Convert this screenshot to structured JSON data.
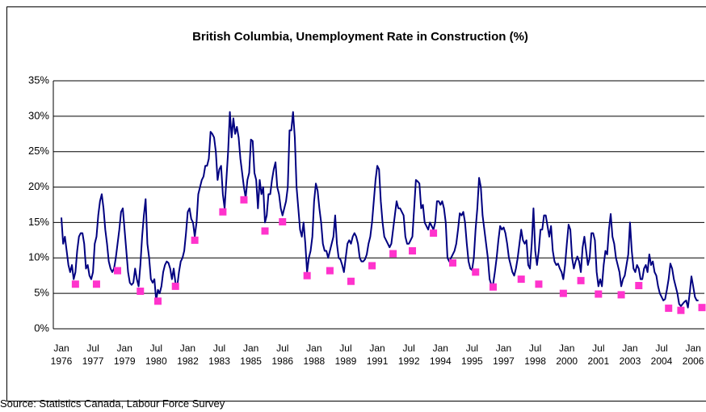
{
  "chart_data": {
    "type": "line",
    "title": "British Columbia, Unemployment Rate in Construction (%)",
    "source": "Source:  Statistics Canada, Labour Force Survey",
    "categories": [
      "Jan 1976",
      null,
      null,
      null,
      null,
      null,
      null,
      null,
      null,
      null,
      null,
      null,
      null,
      null,
      null,
      null,
      null,
      null,
      "Jul 1977",
      null,
      null,
      null,
      null,
      null,
      null,
      null,
      null,
      null,
      null,
      null,
      null,
      null,
      null,
      null,
      null,
      null,
      "Jan 1979",
      null,
      null,
      null,
      null,
      null,
      null,
      null,
      null,
      null,
      null,
      null,
      null,
      null,
      null,
      null,
      null,
      null,
      "Jul 1980",
      null,
      null,
      null,
      null,
      null,
      null,
      null,
      null,
      null,
      null,
      null,
      null,
      null,
      null,
      null,
      null,
      null,
      "Jan 1982",
      null,
      null,
      null,
      null,
      null,
      null,
      null,
      null,
      null,
      null,
      null,
      null,
      null,
      null,
      null,
      null,
      null,
      "Jul 1983",
      null,
      null,
      null,
      null,
      null,
      null,
      null,
      null,
      null,
      null,
      null,
      null,
      null,
      null,
      null,
      null,
      null,
      "Jan 1985",
      null,
      null,
      null,
      null,
      null,
      null,
      null,
      null,
      null,
      null,
      null,
      null,
      null,
      null,
      null,
      null,
      null,
      "Jul 1986",
      null,
      null,
      null,
      null,
      null,
      null,
      null,
      null,
      null,
      null,
      null,
      null,
      null,
      null,
      null,
      null,
      null,
      "Jan 1988",
      null,
      null,
      null,
      null,
      null,
      null,
      null,
      null,
      null,
      null,
      null,
      null,
      null,
      null,
      null,
      null,
      null,
      "Jul 1989",
      null,
      null,
      null,
      null,
      null,
      null,
      null,
      null,
      null,
      null,
      null,
      null,
      null,
      null,
      null,
      null,
      null,
      "Jan 1991",
      null,
      null,
      null,
      null,
      null,
      null,
      null,
      null,
      null,
      null,
      null,
      null,
      null,
      null,
      null,
      null,
      null,
      "Jul 1992",
      null,
      null,
      null,
      null,
      null,
      null,
      null,
      null,
      null,
      null,
      null,
      null,
      null,
      null,
      null,
      null,
      null,
      "Jan 1994",
      null,
      null,
      null,
      null,
      null,
      null,
      null,
      null,
      null,
      null,
      null,
      null,
      null,
      null,
      null,
      null,
      null,
      "Jul 1995",
      null,
      null,
      null,
      null,
      null,
      null,
      null,
      null,
      null,
      null,
      null,
      null,
      null,
      null,
      null,
      null,
      null,
      "Jan 1997",
      null,
      null,
      null,
      null,
      null,
      null,
      null,
      null,
      null,
      null,
      null,
      null,
      null,
      null,
      null,
      null,
      null,
      "Jul 1998",
      null,
      null,
      null,
      null,
      null,
      null,
      null,
      null,
      null,
      null,
      null,
      null,
      null,
      null,
      null,
      null,
      null,
      "Jan 2000",
      null,
      null,
      null,
      null,
      null,
      null,
      null,
      null,
      null,
      null,
      null,
      null,
      null,
      null,
      null,
      null,
      null,
      "Jul 2001",
      null,
      null,
      null,
      null,
      null,
      null,
      null,
      null,
      null,
      null,
      null,
      null,
      null,
      null,
      null,
      null,
      null,
      "Jan 2003",
      null,
      null,
      null,
      null,
      null,
      null,
      null,
      null,
      null,
      null,
      null,
      null,
      null,
      null,
      null,
      null,
      null,
      "Jul 2004",
      null,
      null,
      null,
      null,
      null,
      null,
      null,
      null,
      null,
      null,
      null,
      null,
      null,
      null,
      null,
      null,
      null,
      "Jan 2006",
      null,
      null,
      null,
      null,
      null
    ],
    "series": [
      {
        "color": "#000080",
        "style": "line",
        "values": [
          15.7,
          12,
          13,
          11,
          9,
          8,
          9,
          7,
          8,
          11,
          13,
          13.5,
          13.5,
          12,
          8.5,
          9,
          7.5,
          7,
          8,
          12,
          13,
          16,
          18,
          19,
          17,
          14,
          12,
          9.5,
          8.5,
          8,
          8.5,
          10,
          12,
          14,
          16.5,
          17,
          14,
          11,
          8,
          6.5,
          6.2,
          6.5,
          8.5,
          7,
          6,
          9,
          13,
          16,
          18.3,
          12,
          10,
          7,
          6.5,
          7,
          4,
          5.5,
          5,
          6,
          8,
          9,
          9.5,
          9.3,
          8.5,
          7,
          8.5,
          6.5,
          6,
          8,
          9.5,
          10,
          11,
          13.5,
          16.5,
          17,
          15.5,
          15,
          13,
          15,
          19,
          20,
          21,
          21.5,
          23,
          23,
          24,
          27.8,
          27.5,
          27,
          25,
          21,
          22.5,
          23,
          19,
          17,
          21,
          25,
          30.6,
          27,
          29.7,
          27.5,
          28.5,
          27,
          24,
          22,
          20,
          18.5,
          21,
          22,
          26.7,
          26.5,
          22,
          21,
          17,
          21,
          19,
          20,
          15,
          16,
          19,
          19,
          21,
          22.5,
          23.5,
          20,
          19,
          17,
          16,
          17,
          18,
          20,
          28,
          28,
          30.6,
          27,
          20,
          17,
          14,
          13,
          15,
          12,
          8,
          10,
          11,
          13,
          18,
          20.5,
          19.5,
          17,
          15,
          12,
          11,
          11,
          10,
          11,
          12,
          13,
          16,
          12,
          10,
          9.8,
          9,
          8,
          10,
          12,
          12.5,
          12,
          13,
          13.5,
          13,
          12,
          10,
          9.5,
          9.5,
          9.8,
          10.5,
          12,
          13,
          15,
          18,
          21,
          23,
          22.5,
          18,
          15,
          13,
          12.5,
          12,
          11.5,
          12,
          14,
          16,
          18,
          17,
          17,
          16.5,
          16,
          13,
          12,
          12,
          12.5,
          13,
          17,
          21,
          20.8,
          20.5,
          17,
          17.5,
          15,
          14.5,
          14,
          15,
          14.5,
          14,
          15,
          18,
          18,
          17.5,
          18,
          17,
          15,
          10,
          9.5,
          10,
          10.5,
          11,
          12,
          14,
          16.3,
          16,
          16.5,
          15,
          12,
          9.5,
          8.5,
          8.3,
          10,
          14,
          17,
          21.3,
          20,
          16,
          14,
          12,
          10,
          7,
          6.2,
          6.3,
          8,
          10,
          12.5,
          14.5,
          14,
          14.3,
          13.5,
          12,
          10,
          9,
          8,
          7.5,
          8.5,
          10,
          12,
          14,
          12.5,
          12,
          12.5,
          9,
          8.5,
          12,
          17,
          11,
          9,
          11,
          14,
          14,
          16,
          16,
          14.5,
          13,
          14.5,
          11,
          9.5,
          9,
          9.2,
          8.5,
          8,
          7,
          9,
          12,
          14.7,
          14,
          10,
          8.5,
          9.5,
          10.2,
          9.5,
          8,
          11.5,
          13,
          11,
          9,
          10,
          13.5,
          13.5,
          12.5,
          8,
          6,
          7,
          6,
          9,
          11,
          10.5,
          14,
          16.2,
          13,
          12,
          10,
          9,
          8,
          6,
          7,
          7.5,
          9,
          10.5,
          15,
          11,
          8.5,
          8,
          9,
          8.5,
          7,
          7,
          8.5,
          9,
          8,
          10.5,
          9,
          9.5,
          8,
          7.5,
          6,
          5,
          4.5,
          4,
          4.2,
          5.5,
          7,
          9.2,
          8.5,
          7,
          6,
          5,
          3.5,
          3.2,
          3.5,
          3.8,
          4,
          3,
          5,
          7.4,
          6,
          4.5,
          4,
          4,
          null,
          null
        ]
      },
      {
        "color": "#ff33cc",
        "style": "marker",
        "values": [
          null,
          null,
          null,
          null,
          null,
          null,
          null,
          null,
          6.3,
          null,
          null,
          null,
          null,
          null,
          null,
          null,
          null,
          null,
          null,
          null,
          6.3,
          null,
          null,
          null,
          null,
          null,
          null,
          null,
          null,
          null,
          null,
          null,
          8.2,
          null,
          null,
          null,
          null,
          null,
          null,
          null,
          null,
          null,
          null,
          null,
          null,
          5.3,
          null,
          null,
          null,
          null,
          null,
          null,
          null,
          null,
          null,
          3.9,
          null,
          null,
          null,
          null,
          null,
          null,
          null,
          null,
          null,
          6,
          null,
          null,
          null,
          null,
          null,
          null,
          null,
          null,
          null,
          null,
          12.5,
          null,
          null,
          null,
          null,
          null,
          null,
          null,
          null,
          null,
          null,
          null,
          null,
          null,
          null,
          null,
          16.5,
          null,
          null,
          null,
          null,
          null,
          null,
          null,
          null,
          null,
          null,
          null,
          18.2,
          null,
          null,
          null,
          null,
          null,
          null,
          null,
          null,
          null,
          null,
          null,
          13.8,
          null,
          null,
          null,
          null,
          null,
          null,
          null,
          null,
          null,
          15.1,
          null,
          null,
          null,
          null,
          null,
          null,
          null,
          null,
          null,
          null,
          null,
          null,
          null,
          7.5,
          null,
          null,
          null,
          null,
          null,
          null,
          null,
          null,
          null,
          null,
          null,
          null,
          8.2,
          null,
          null,
          null,
          null,
          null,
          null,
          null,
          null,
          null,
          null,
          null,
          6.7,
          null,
          null,
          null,
          null,
          null,
          null,
          null,
          null,
          null,
          null,
          null,
          8.9,
          null,
          null,
          null,
          null,
          null,
          null,
          null,
          null,
          null,
          null,
          null,
          10.6,
          null,
          null,
          null,
          null,
          null,
          null,
          null,
          null,
          null,
          null,
          11,
          null,
          null,
          null,
          null,
          null,
          null,
          null,
          null,
          null,
          null,
          null,
          13.5,
          null,
          null,
          null,
          null,
          null,
          null,
          null,
          null,
          null,
          null,
          9.3,
          null,
          null,
          null,
          null,
          null,
          null,
          null,
          null,
          null,
          null,
          null,
          null,
          8,
          null,
          null,
          null,
          null,
          null,
          null,
          null,
          null,
          null,
          5.9,
          null,
          null,
          null,
          null,
          null,
          null,
          null,
          null,
          null,
          null,
          null,
          null,
          null,
          null,
          null,
          7,
          null,
          null,
          null,
          null,
          null,
          null,
          null,
          null,
          null,
          6.3,
          null,
          null,
          null,
          null,
          null,
          null,
          null,
          null,
          null,
          null,
          null,
          null,
          null,
          5,
          null,
          null,
          null,
          null,
          null,
          null,
          null,
          null,
          null,
          6.8,
          null,
          null,
          null,
          null,
          null,
          null,
          null,
          null,
          null,
          4.9,
          null,
          null,
          null,
          null,
          null,
          null,
          null,
          null,
          null,
          null,
          null,
          null,
          4.8,
          null,
          null,
          null,
          null,
          null,
          null,
          null,
          null,
          null,
          6.1,
          null,
          null,
          null,
          null,
          null,
          null,
          null,
          null,
          null,
          null,
          null,
          null,
          null,
          null,
          null,
          null,
          2.9,
          null,
          null,
          null,
          null,
          null,
          null,
          2.6,
          null,
          null,
          null,
          null,
          null,
          null,
          null,
          null,
          null,
          null,
          null,
          3
        ]
      }
    ],
    "ylim": [
      0,
      35
    ],
    "yticks": [
      {
        "value": 0,
        "label": "0%"
      },
      {
        "value": 5,
        "label": "5%"
      },
      {
        "value": 10,
        "label": "10%"
      },
      {
        "value": 15,
        "label": "15%"
      },
      {
        "value": 20,
        "label": "20%"
      },
      {
        "value": 25,
        "label": "25%"
      },
      {
        "value": 30,
        "label": "30%"
      },
      {
        "value": 35,
        "label": "35%"
      }
    ],
    "grid": true
  }
}
